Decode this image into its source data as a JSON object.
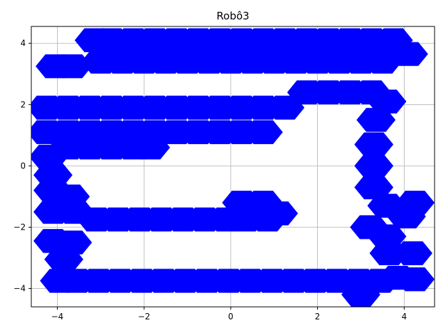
{
  "chart_data": {
    "type": "scatter",
    "title": "Robô3",
    "xlabel": "",
    "ylabel": "",
    "xlim": [
      -4.6,
      4.7
    ],
    "ylim": [
      -4.6,
      4.55
    ],
    "xticks": [
      -4,
      -2,
      0,
      2,
      4
    ],
    "yticks": [
      -4,
      -2,
      0,
      2,
      4
    ],
    "xtick_labels": [
      "−4",
      "−2",
      "0",
      "2",
      "4"
    ],
    "ytick_labels": [
      "−4",
      "−2",
      "0",
      "2",
      "4"
    ],
    "grid": true,
    "marker": "hexagon",
    "marker_radius": 0.45,
    "color": "#0000ff",
    "series": [
      {
        "values": [
          [
            -3.15,
            4.1
          ],
          [
            -2.75,
            4.1
          ],
          [
            -2.25,
            4.1
          ],
          [
            -1.75,
            4.1
          ],
          [
            -1.25,
            4.1
          ],
          [
            -0.75,
            4.1
          ],
          [
            -0.25,
            4.1
          ],
          [
            0.25,
            4.1
          ],
          [
            0.75,
            4.1
          ],
          [
            1.25,
            4.1
          ],
          [
            1.75,
            4.1
          ],
          [
            2.25,
            4.1
          ],
          [
            2.75,
            4.1
          ],
          [
            3.25,
            4.1
          ],
          [
            3.75,
            4.1
          ],
          [
            -4.05,
            3.25
          ],
          [
            -3.65,
            3.25
          ],
          [
            -3.0,
            3.4
          ],
          [
            -2.5,
            3.4
          ],
          [
            -2.0,
            3.4
          ],
          [
            -1.5,
            3.4
          ],
          [
            -1.0,
            3.4
          ],
          [
            -0.5,
            3.4
          ],
          [
            0.0,
            3.4
          ],
          [
            0.5,
            3.4
          ],
          [
            1.0,
            3.4
          ],
          [
            1.5,
            3.4
          ],
          [
            2.0,
            3.4
          ],
          [
            2.5,
            3.4
          ],
          [
            3.0,
            3.4
          ],
          [
            3.5,
            3.4
          ],
          [
            4.1,
            3.65
          ],
          [
            1.75,
            2.4
          ],
          [
            2.25,
            2.4
          ],
          [
            2.75,
            2.4
          ],
          [
            3.25,
            2.4
          ],
          [
            3.6,
            2.1
          ],
          [
            -4.25,
            1.9
          ],
          [
            -3.75,
            1.9
          ],
          [
            -3.25,
            1.9
          ],
          [
            -2.75,
            1.9
          ],
          [
            -2.25,
            1.9
          ],
          [
            -1.75,
            1.9
          ],
          [
            -1.25,
            1.9
          ],
          [
            -0.75,
            1.9
          ],
          [
            -0.25,
            1.9
          ],
          [
            0.25,
            1.9
          ],
          [
            0.75,
            1.9
          ],
          [
            1.25,
            1.9
          ],
          [
            -4.25,
            1.1
          ],
          [
            -3.75,
            1.1
          ],
          [
            -3.25,
            1.1
          ],
          [
            -2.75,
            1.1
          ],
          [
            -2.25,
            1.1
          ],
          [
            -1.75,
            1.1
          ],
          [
            -1.25,
            1.1
          ],
          [
            -0.75,
            1.1
          ],
          [
            -0.25,
            1.1
          ],
          [
            0.25,
            1.1
          ],
          [
            0.75,
            1.1
          ],
          [
            -3.75,
            0.6
          ],
          [
            -3.25,
            0.6
          ],
          [
            -2.75,
            0.6
          ],
          [
            -2.25,
            0.6
          ],
          [
            -1.85,
            0.6
          ],
          [
            -4.2,
            0.3
          ],
          [
            -4.1,
            -0.3
          ],
          [
            -4.1,
            -0.8
          ],
          [
            -3.7,
            -1.0
          ],
          [
            3.35,
            1.5
          ],
          [
            3.3,
            0.7
          ],
          [
            3.3,
            0.0
          ],
          [
            3.3,
            -0.7
          ],
          [
            3.6,
            -1.3
          ],
          [
            4.25,
            -1.2
          ],
          [
            4.05,
            -1.65
          ],
          [
            -4.1,
            -1.5
          ],
          [
            -3.6,
            -1.5
          ],
          [
            -3.1,
            -1.75
          ],
          [
            -2.6,
            -1.75
          ],
          [
            -2.1,
            -1.75
          ],
          [
            -1.6,
            -1.75
          ],
          [
            -1.1,
            -1.75
          ],
          [
            -0.6,
            -1.75
          ],
          [
            -0.1,
            -1.75
          ],
          [
            0.35,
            -1.75
          ],
          [
            0.85,
            -1.75
          ],
          [
            0.25,
            -1.2
          ],
          [
            0.75,
            -1.2
          ],
          [
            1.1,
            -1.55
          ],
          [
            3.2,
            -2.0
          ],
          [
            3.6,
            -2.3
          ],
          [
            3.65,
            -2.85
          ],
          [
            4.2,
            -2.85
          ],
          [
            -4.1,
            -2.45
          ],
          [
            -3.65,
            -2.5
          ],
          [
            -3.85,
            -3.05
          ],
          [
            -3.95,
            -3.75
          ],
          [
            -3.55,
            -3.75
          ],
          [
            -3.05,
            -3.75
          ],
          [
            -2.55,
            -3.75
          ],
          [
            -2.05,
            -3.75
          ],
          [
            -1.55,
            -3.75
          ],
          [
            -1.05,
            -3.75
          ],
          [
            -0.55,
            -3.75
          ],
          [
            -0.05,
            -3.75
          ],
          [
            0.45,
            -3.75
          ],
          [
            0.95,
            -3.75
          ],
          [
            1.45,
            -3.75
          ],
          [
            1.95,
            -3.75
          ],
          [
            2.45,
            -3.75
          ],
          [
            2.95,
            -3.75
          ],
          [
            3.45,
            -3.75
          ],
          [
            3.85,
            -3.65
          ],
          [
            4.25,
            -3.7
          ],
          [
            3.0,
            -4.2
          ]
        ]
      }
    ]
  }
}
